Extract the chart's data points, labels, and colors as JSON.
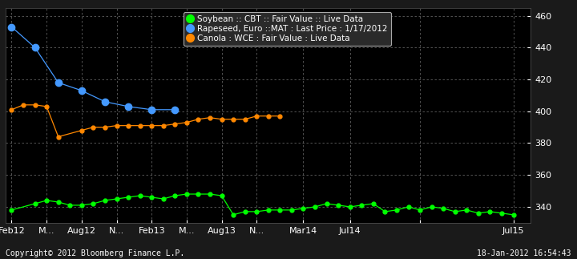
{
  "bg_color": "#1a1a1a",
  "plot_bg_color": "#000000",
  "grid_color": "#888888",
  "text_color": "#ffffff",
  "ylim": [
    330,
    465
  ],
  "yticks": [
    340,
    360,
    380,
    400,
    420,
    440,
    460
  ],
  "x_labels": [
    "Feb12",
    "M...",
    "Aug12",
    "N...",
    "Feb13",
    "M...",
    "Aug13",
    "N...",
    "Mar14",
    "Jul14",
    "",
    "Jul15"
  ],
  "x_positions": [
    0,
    3,
    6,
    9,
    12,
    15,
    18,
    21,
    25,
    29,
    35,
    43
  ],
  "xlim": [
    -0.5,
    44.5
  ],
  "legend_items": [
    {
      "label": "Soybean :: CBT :: Fair Value :: Live Data",
      "color": "#00ff00"
    },
    {
      "label": "Rapeseed, Euro ::MAT : Last Price : 1/17/2012",
      "color": "#4499ff"
    },
    {
      "label": "Canola : WCE : Fair Value : Live Data",
      "color": "#ff8800"
    }
  ],
  "copyright_text": "Copyright© 2012 Bloomberg Finance L.P.",
  "datetime_text": "18-Jan-2012 16:54:43",
  "soybean_x": [
    0,
    2,
    3,
    4,
    5,
    6,
    7,
    8,
    9,
    10,
    11,
    12,
    13,
    14,
    15,
    16,
    17,
    18,
    19,
    20,
    21,
    22,
    23,
    24,
    25,
    26,
    27,
    28,
    29,
    30,
    31,
    32,
    33,
    34,
    35,
    36,
    37,
    38,
    39,
    40,
    41,
    42,
    43
  ],
  "soybean_y": [
    338,
    342,
    344,
    343,
    341,
    341,
    342,
    344,
    345,
    346,
    347,
    346,
    345,
    347,
    348,
    348,
    348,
    347,
    335,
    337,
    337,
    338,
    338,
    338,
    339,
    340,
    342,
    341,
    340,
    341,
    342,
    337,
    338,
    340,
    338,
    340,
    339,
    337,
    338,
    336,
    337,
    336,
    335
  ],
  "rapeseed_x": [
    0,
    2,
    4,
    6,
    8,
    10,
    12,
    14
  ],
  "rapeseed_y": [
    453,
    440,
    418,
    413,
    406,
    403,
    401,
    401
  ],
  "canola_x": [
    0,
    1,
    2,
    3,
    4,
    6,
    7,
    8,
    9,
    10,
    11,
    12,
    13,
    14,
    15,
    16,
    17,
    18,
    19,
    20,
    21,
    22,
    23
  ],
  "canola_y": [
    401,
    404,
    404,
    403,
    384,
    388,
    390,
    390,
    391,
    391,
    391,
    391,
    391,
    392,
    393,
    395,
    396,
    395,
    395,
    395,
    397,
    397,
    397
  ]
}
